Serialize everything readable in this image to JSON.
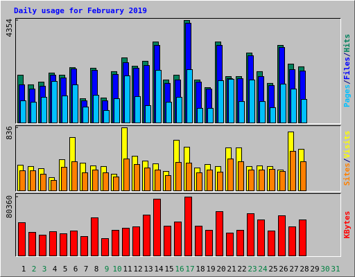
{
  "chart_data": [
    {
      "type": "bar",
      "title": "Daily usage for February 2019",
      "ylim": [
        0,
        4354
      ],
      "yticks": [
        4354
      ],
      "legend_separator": "/",
      "series": [
        {
          "name": "Hits",
          "color": "#00805c",
          "label_color": "#00805c",
          "values": [
            2030,
            1620,
            1735,
            2120,
            2030,
            2350,
            1030,
            2325,
            1060,
            2180,
            2765,
            2410,
            2620,
            3440,
            1825,
            2030,
            4354,
            1825,
            1500,
            3440,
            1970,
            1970,
            2970,
            2180,
            1680,
            3295,
            2500,
            2385,
            null,
            null,
            null
          ]
        },
        {
          "name": "Files",
          "color": "#0000ff",
          "label_color": "#0000ff",
          "values": [
            1620,
            1440,
            1560,
            2030,
            1910,
            2295,
            940,
            2235,
            940,
            2060,
            2560,
            2325,
            2440,
            3295,
            1680,
            1825,
            4235,
            1735,
            1440,
            3295,
            1880,
            1880,
            2855,
            1970,
            1590,
            3205,
            2265,
            2205,
            null,
            null,
            null
          ]
        },
        {
          "name": "Pages",
          "color": "#00c0ff",
          "label_color": "#00c0ff",
          "values": [
            940,
            880,
            1090,
            1765,
            1150,
            1620,
            675,
            1175,
            530,
            1030,
            2000,
            1120,
            735,
            2235,
            880,
            1090,
            2265,
            620,
            620,
            1795,
            1855,
            910,
            1825,
            910,
            650,
            1650,
            1440,
            1000,
            null,
            null,
            null
          ]
        }
      ]
    },
    {
      "type": "bar",
      "ylim": [
        0,
        836
      ],
      "yticks": [
        836
      ],
      "legend_separator": "/",
      "series": [
        {
          "name": "Visits",
          "color": "#ffff00",
          "label_color": "#ffff00",
          "values": [
            340,
            322,
            294,
            175,
            413,
            707,
            367,
            331,
            322,
            220,
            836,
            459,
            395,
            358,
            257,
            671,
            579,
            303,
            349,
            322,
            570,
            570,
            322,
            331,
            322,
            276,
            781,
            551,
            null,
            null,
            null
          ]
        },
        {
          "name": "Sites",
          "color": "#ff8000",
          "label_color": "#ff8000",
          "values": [
            266,
            266,
            220,
            138,
            312,
            386,
            239,
            276,
            239,
            184,
            423,
            349,
            303,
            276,
            202,
            377,
            368,
            239,
            276,
            248,
            423,
            386,
            276,
            276,
            285,
            257,
            524,
            386,
            null,
            null,
            null
          ]
        }
      ]
    },
    {
      "type": "bar",
      "ylim": [
        0,
        80360
      ],
      "yticks": [
        80360
      ],
      "categories": [
        "1",
        "2",
        "3",
        "4",
        "5",
        "6",
        "7",
        "8",
        "9",
        "10",
        "11",
        "12",
        "13",
        "14",
        "15",
        "16",
        "17",
        "18",
        "19",
        "20",
        "21",
        "22",
        "23",
        "24",
        "25",
        "26",
        "27",
        "28",
        "29",
        "30",
        "31"
      ],
      "category_colors": [
        "#000000",
        "#008040",
        "#008040",
        "#000000",
        "#000000",
        "#000000",
        "#000000",
        "#000000",
        "#008040",
        "#008040",
        "#000000",
        "#000000",
        "#000000",
        "#000000",
        "#000000",
        "#008040",
        "#008040",
        "#000000",
        "#000000",
        "#000000",
        "#000000",
        "#000000",
        "#008040",
        "#008040",
        "#000000",
        "#000000",
        "#000000",
        "#000000",
        "#000000",
        "#008040",
        "#008040"
      ],
      "series": [
        {
          "name": "KBytes",
          "color": "#ff0000",
          "label_color": "#ff0000",
          "values": [
            45360,
            32130,
            28350,
            33075,
            30240,
            34020,
            26460,
            52000,
            23625,
            34965,
            37800,
            39690,
            55755,
            77490,
            40635,
            46305,
            80360,
            40635,
            34965,
            60480,
            31185,
            34965,
            57645,
            49140,
            34020,
            54810,
            39690,
            49140,
            null,
            null,
            null
          ]
        }
      ]
    }
  ]
}
